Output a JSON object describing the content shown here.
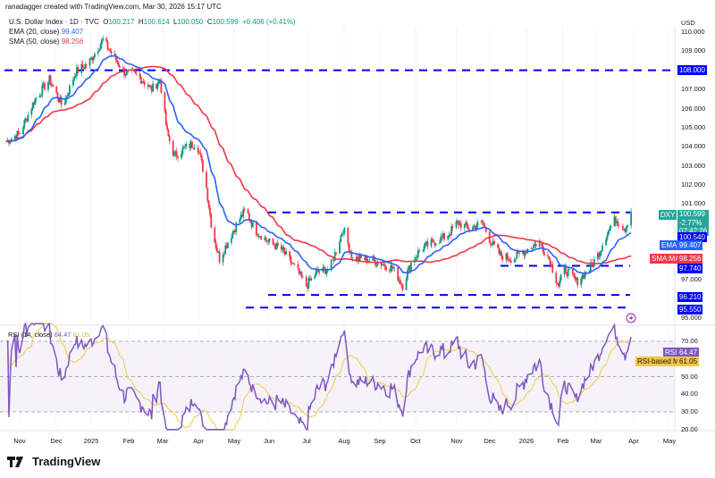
{
  "credit": "ranadagger created with TradingView.com, Mar 30, 2026 15:17 UTC",
  "legend": {
    "symbol": "U.S. Dollar Index · 1D · TVC",
    "o_label": "O",
    "o": "100.217",
    "h_label": "H",
    "h": "100.614",
    "l_label": "L",
    "l": "100.050",
    "c_label": "C",
    "c": "100.599",
    "change": "+0.406 (+0.41%)",
    "ema_label": "EMA (20, close)",
    "ema": "99.407",
    "sma_label": "SMA (50, close)",
    "sma": "98.256"
  },
  "currency": "USD",
  "price_tag": {
    "ticker": "DXY",
    "price": "100.599",
    "pct": "-2.77%",
    "countdown": "07:42:26"
  },
  "level_tags": [
    "108.000",
    "100.540",
    "97.740",
    "96.210",
    "95.550"
  ],
  "ema_tag": {
    "label": "EMA",
    "value": "99.407"
  },
  "sma_tag": {
    "label": "SMA:MA",
    "value": "98.256"
  },
  "price_ticks": [
    "110.000",
    "109.000",
    "107.000",
    "106.000",
    "105.000",
    "104.000",
    "103.000",
    "102.000",
    "101.000",
    "97.000",
    "95.000"
  ],
  "rsi": {
    "legend": "RSI (14, close)",
    "value": "64.47",
    "ma": "61.05",
    "tag": "RSI",
    "ma_tag": "RSI-based MA",
    "ticks": [
      "70.00",
      "50.00",
      "40.00",
      "30.00",
      "20.00"
    ]
  },
  "x_ticks": [
    "Nov",
    "Dec",
    "2025",
    "Feb",
    "Mar",
    "Apr",
    "May",
    "Jun",
    "Jul",
    "Aug",
    "Sep",
    "Oct",
    "Nov",
    "Dec",
    "2026",
    "Feb",
    "Mar",
    "Apr",
    "May"
  ],
  "logo": "TradingView",
  "colors": {
    "up": "#089981",
    "down": "#f23645",
    "ema": "#2962ff",
    "sma": "#f23645",
    "level": "#0000ff",
    "rsi": "#7e57c2",
    "rsi_ma": "#f5c842",
    "tag_green": "#26a69a"
  },
  "icons": [
    "lightning-alert-icon",
    "tradingview-logo-icon"
  ],
  "chart_data": {
    "type": "candlestick",
    "title": "U.S. Dollar Index · 1D · TVC",
    "ylabel": "USD",
    "ylim": [
      95,
      110
    ],
    "grid": true,
    "levels": [
      108.0,
      100.54,
      97.74,
      96.21,
      95.55
    ],
    "dates": [
      "2024-10-19",
      "2024-11-01",
      "2024-11-14",
      "2024-11-26",
      "2024-12-07",
      "2024-12-18",
      "2024-12-29",
      "2025-01-10",
      "2025-01-17",
      "2025-01-28",
      "2025-02-09",
      "2025-02-20",
      "2025-02-27",
      "2025-03-05",
      "2025-03-11",
      "2025-03-22",
      "2025-03-30",
      "2025-04-06",
      "2025-04-12",
      "2025-04-18",
      "2025-04-25",
      "2025-05-03",
      "2025-05-10",
      "2025-05-17",
      "2025-05-29",
      "2025-06-09",
      "2025-06-21",
      "2025-06-30",
      "2025-07-09",
      "2025-07-20",
      "2025-07-31",
      "2025-08-08",
      "2025-08-19",
      "2025-08-31",
      "2025-09-11",
      "2025-09-19",
      "2025-09-26",
      "2025-10-04",
      "2025-10-15",
      "2025-10-26",
      "2025-11-04",
      "2025-11-14",
      "2025-11-25",
      "2025-12-02",
      "2025-12-10",
      "2025-12-21",
      "2026-01-01",
      "2026-01-12",
      "2026-01-20",
      "2026-01-28",
      "2026-02-02",
      "2026-02-12",
      "2026-02-23",
      "2026-03-02",
      "2026-03-10",
      "2026-03-17",
      "2026-03-25",
      "2026-03-30"
    ],
    "close": [
      104.2,
      104.7,
      106.5,
      107.5,
      106.1,
      107.9,
      108.4,
      109.6,
      108.9,
      107.9,
      107.7,
      107.0,
      107.5,
      104.7,
      103.5,
      104.0,
      104.2,
      102.3,
      99.5,
      98.1,
      99.0,
      100.0,
      100.7,
      99.7,
      99.0,
      98.6,
      97.6,
      96.7,
      97.4,
      97.6,
      99.7,
      98.1,
      98.1,
      97.9,
      97.6,
      96.7,
      97.9,
      98.6,
      99.0,
      99.3,
      100.0,
      99.7,
      100.0,
      99.0,
      98.3,
      98.1,
      98.6,
      99.0,
      98.1,
      96.7,
      97.6,
      96.9,
      97.6,
      98.3,
      99.5,
      100.2,
      99.7,
      100.599
    ],
    "ema20_last": 99.407,
    "sma50_last": 98.256,
    "rsi14_last": 64.47,
    "rsi_ma_last": 61.05,
    "rsi_ylim": [
      20,
      80
    ],
    "rsi_bands": [
      70,
      50,
      30
    ]
  }
}
